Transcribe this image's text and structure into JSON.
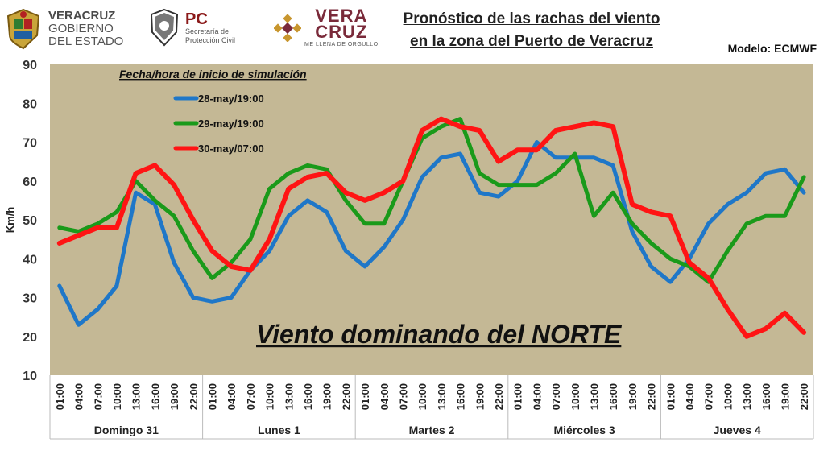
{
  "header": {
    "gov_line1": "VERACRUZ",
    "gov_line2": "GOBIERNO",
    "gov_line3": "DEL ESTADO",
    "pc_big": "PC",
    "pc_line1": "Secretaría de",
    "pc_line2": "Protección Civil",
    "vc_line1": "VERA",
    "vc_line2": "CRUZ",
    "vc_tagline": "ME LLENA DE ORGULLO",
    "title_line1": "Pronóstico de las rachas del viento",
    "title_line2": "en la zona del Puerto de Veracruz",
    "model": "Modelo: ECMWF"
  },
  "chart_data": {
    "type": "line",
    "ylabel": "Km/h",
    "ylim": [
      10,
      90
    ],
    "yticks": [
      10,
      20,
      30,
      40,
      50,
      60,
      70,
      80,
      90
    ],
    "legend_title": "Fecha/hora de inicio de simulación",
    "legend_position": "top-left",
    "annotation": "Viento dominando del NORTE",
    "plot_background": "#c4b895",
    "x": [
      "01:00",
      "04:00",
      "07:00",
      "10:00",
      "13:00",
      "16:00",
      "19:00",
      "22:00",
      "01:00",
      "04:00",
      "07:00",
      "10:00",
      "13:00",
      "16:00",
      "19:00",
      "22:00",
      "01:00",
      "04:00",
      "07:00",
      "10:00",
      "13:00",
      "16:00",
      "19:00",
      "22:00",
      "01:00",
      "04:00",
      "07:00",
      "10:00",
      "13:00",
      "16:00",
      "19:00",
      "22:00",
      "01:00",
      "04:00",
      "07:00",
      "10:00",
      "13:00",
      "16:00",
      "19:00",
      "22:00"
    ],
    "days": [
      "Domingo 31",
      "Lunes 1",
      "Martes 2",
      "Miércoles 3",
      "Jueves 4"
    ],
    "series": [
      {
        "name": "28-may/19:00",
        "color": "#1f77c8",
        "values": [
          33,
          23,
          27,
          33,
          57,
          54,
          39,
          30,
          29,
          30,
          37,
          42,
          51,
          55,
          52,
          42,
          38,
          43,
          50,
          61,
          66,
          67,
          57,
          56,
          60,
          70,
          66,
          66,
          66,
          64,
          47,
          38,
          34,
          40,
          49,
          54,
          57,
          62,
          63,
          57
        ]
      },
      {
        "name": "29-may/19:00",
        "color": "#1a9a1a",
        "values": [
          48,
          47,
          49,
          52,
          60,
          55,
          51,
          42,
          35,
          39,
          45,
          58,
          62,
          64,
          63,
          55,
          49,
          49,
          60,
          71,
          74,
          76,
          62,
          59,
          59,
          59,
          62,
          67,
          51,
          57,
          49,
          44,
          40,
          38,
          34,
          42,
          49,
          51,
          51,
          61
        ]
      },
      {
        "name": "30-may/07:00",
        "color": "#ff1414",
        "values": [
          44,
          46,
          48,
          48,
          62,
          64,
          59,
          50,
          42,
          38,
          37,
          45,
          58,
          61,
          62,
          57,
          55,
          57,
          60,
          73,
          76,
          74,
          73,
          65,
          68,
          68,
          73,
          74,
          75,
          74,
          54,
          52,
          51,
          39,
          35,
          27,
          20,
          22,
          26,
          21
        ]
      }
    ]
  }
}
